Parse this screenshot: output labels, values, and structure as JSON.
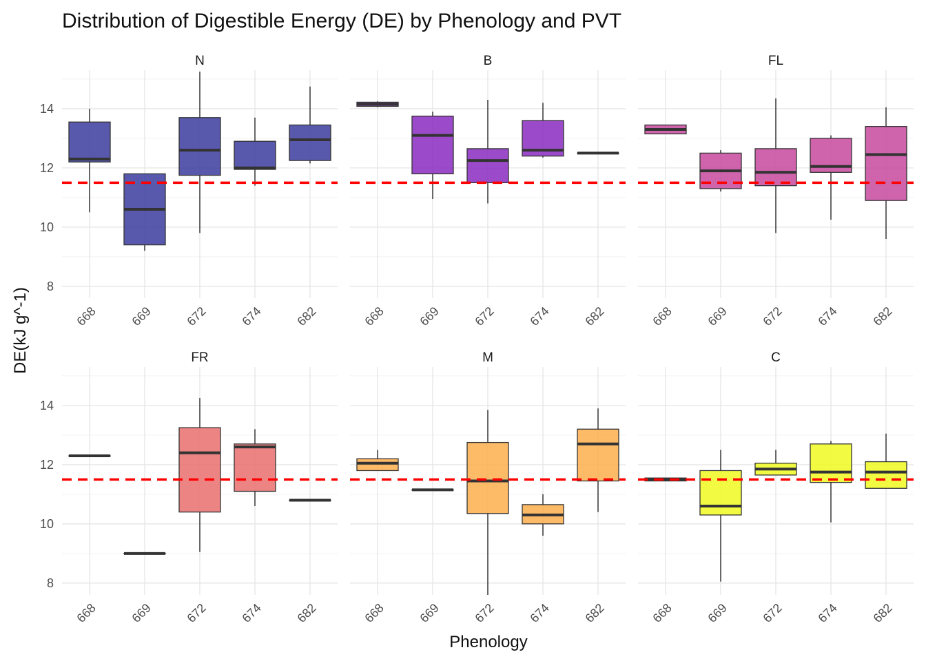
{
  "chart_data": {
    "type": "boxplot",
    "title": "Distribution of Digestible Energy (DE) by Phenology and PVT",
    "xlabel": "Phenology",
    "ylabel": "DE(kJ g^-1)",
    "categories": [
      "668",
      "669",
      "672",
      "674",
      "682"
    ],
    "y_ticks": [
      8,
      10,
      12,
      14
    ],
    "ylim": [
      7.6,
      15.3
    ],
    "reference_line": {
      "y": 11.5,
      "color": "#ff0000",
      "style": "dashed"
    },
    "grid": true,
    "panels": [
      {
        "name": "N",
        "color": "#3b3b9e",
        "boxes": [
          {
            "cat": "668",
            "min": 10.5,
            "q1": 12.2,
            "median": 12.3,
            "q3": 13.55,
            "max": 14.0
          },
          {
            "cat": "669",
            "min": 9.2,
            "q1": 9.4,
            "median": 10.6,
            "q3": 11.8,
            "max": 11.8
          },
          {
            "cat": "672",
            "min": 9.8,
            "q1": 11.75,
            "median": 12.6,
            "q3": 13.7,
            "max": 15.25
          },
          {
            "cat": "674",
            "min": 11.4,
            "q1": 11.95,
            "median": 12.0,
            "q3": 12.9,
            "max": 13.7
          },
          {
            "cat": "682",
            "min": 12.15,
            "q1": 12.25,
            "median": 12.95,
            "q3": 13.45,
            "max": 14.75
          }
        ]
      },
      {
        "name": "B",
        "color": "#8a2bbf",
        "boxes": [
          {
            "cat": "668",
            "min": 14.05,
            "q1": 14.08,
            "median": 14.15,
            "q3": 14.22,
            "max": 14.25
          },
          {
            "cat": "669",
            "min": 10.95,
            "q1": 11.8,
            "median": 13.1,
            "q3": 13.75,
            "max": 13.9
          },
          {
            "cat": "672",
            "min": 10.8,
            "q1": 11.5,
            "median": 12.25,
            "q3": 12.65,
            "max": 14.3
          },
          {
            "cat": "674",
            "min": 12.35,
            "q1": 12.4,
            "median": 12.6,
            "q3": 13.6,
            "max": 14.2
          },
          {
            "cat": "682",
            "min": 12.5,
            "q1": 12.5,
            "median": 12.5,
            "q3": 12.5,
            "max": 12.5
          }
        ]
      },
      {
        "name": "FL",
        "color": "#c7499e",
        "boxes": [
          {
            "cat": "668",
            "min": 13.15,
            "q1": 13.15,
            "median": 13.3,
            "q3": 13.45,
            "max": 13.45
          },
          {
            "cat": "669",
            "min": 11.2,
            "q1": 11.3,
            "median": 11.9,
            "q3": 12.5,
            "max": 12.6
          },
          {
            "cat": "672",
            "min": 9.8,
            "q1": 11.4,
            "median": 11.85,
            "q3": 12.65,
            "max": 14.35
          },
          {
            "cat": "674",
            "min": 10.25,
            "q1": 11.85,
            "median": 12.05,
            "q3": 13.0,
            "max": 13.1
          },
          {
            "cat": "682",
            "min": 9.6,
            "q1": 10.9,
            "median": 12.45,
            "q3": 13.4,
            "max": 14.05
          }
        ]
      },
      {
        "name": "FR",
        "color": "#ea6e6e",
        "boxes": [
          {
            "cat": "668",
            "min": 12.3,
            "q1": 12.3,
            "median": 12.3,
            "q3": 12.3,
            "max": 12.3
          },
          {
            "cat": "669",
            "min": 9.0,
            "q1": 9.0,
            "median": 9.0,
            "q3": 9.0,
            "max": 9.0
          },
          {
            "cat": "672",
            "min": 9.05,
            "q1": 10.4,
            "median": 12.4,
            "q3": 13.25,
            "max": 14.25
          },
          {
            "cat": "674",
            "min": 10.6,
            "q1": 11.1,
            "median": 12.6,
            "q3": 12.7,
            "max": 13.2
          },
          {
            "cat": "682",
            "min": 10.8,
            "q1": 10.8,
            "median": 10.8,
            "q3": 10.8,
            "max": 10.8
          }
        ]
      },
      {
        "name": "M",
        "color": "#fdae4c",
        "boxes": [
          {
            "cat": "668",
            "min": 11.8,
            "q1": 11.8,
            "median": 12.05,
            "q3": 12.2,
            "max": 12.5
          },
          {
            "cat": "669",
            "min": 11.15,
            "q1": 11.15,
            "median": 11.15,
            "q3": 11.15,
            "max": 11.15
          },
          {
            "cat": "672",
            "min": 7.6,
            "q1": 10.35,
            "median": 11.45,
            "q3": 12.75,
            "max": 13.85
          },
          {
            "cat": "674",
            "min": 9.6,
            "q1": 10.0,
            "median": 10.3,
            "q3": 10.65,
            "max": 11.0
          },
          {
            "cat": "682",
            "min": 10.4,
            "q1": 11.45,
            "median": 12.7,
            "q3": 13.2,
            "max": 13.9
          }
        ]
      },
      {
        "name": "C",
        "color": "#f0f921",
        "boxes": [
          {
            "cat": "668",
            "min": 11.45,
            "q1": 11.45,
            "median": 11.5,
            "q3": 11.55,
            "max": 11.55
          },
          {
            "cat": "669",
            "min": 8.05,
            "q1": 10.3,
            "median": 10.6,
            "q3": 11.8,
            "max": 12.5
          },
          {
            "cat": "672",
            "min": 11.65,
            "q1": 11.65,
            "median": 11.85,
            "q3": 12.05,
            "max": 12.5
          },
          {
            "cat": "674",
            "min": 10.05,
            "q1": 11.4,
            "median": 11.75,
            "q3": 12.7,
            "max": 12.8
          },
          {
            "cat": "682",
            "min": 11.2,
            "q1": 11.2,
            "median": 11.75,
            "q3": 12.1,
            "max": 13.05
          }
        ]
      }
    ]
  }
}
